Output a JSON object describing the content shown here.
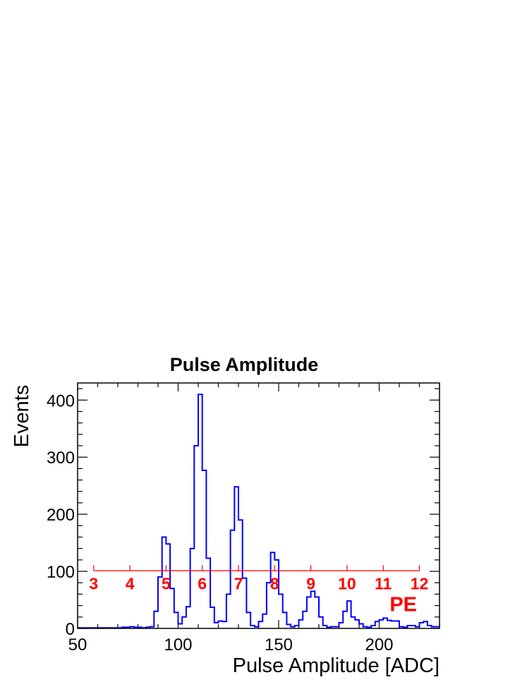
{
  "chart_data": {
    "type": "histogram",
    "title": "Pulse Amplitude",
    "xlabel": "Pulse Amplitude [ADC]",
    "ylabel": "Events",
    "xlim": [
      50,
      230
    ],
    "ylim": [
      0,
      430
    ],
    "x_ticks": [
      50,
      100,
      150,
      200
    ],
    "y_ticks": [
      0,
      100,
      200,
      300,
      400
    ],
    "grid": false,
    "bin_edges_start": 50,
    "bin_width": 2,
    "values": [
      1,
      1,
      1,
      1,
      1,
      1,
      1,
      1,
      1,
      1,
      1,
      2,
      2,
      3,
      2,
      2,
      1,
      2,
      3,
      30,
      90,
      160,
      148,
      70,
      28,
      8,
      20,
      38,
      140,
      320,
      410,
      277,
      123,
      37,
      10,
      13,
      12,
      60,
      172,
      248,
      190,
      88,
      28,
      5,
      3,
      12,
      25,
      80,
      133,
      120,
      60,
      28,
      7,
      3,
      5,
      15,
      30,
      55,
      65,
      55,
      20,
      5,
      2,
      3,
      3,
      10,
      30,
      48,
      20,
      15,
      8,
      3,
      2,
      5,
      12,
      15,
      18,
      14,
      13,
      13,
      3,
      2,
      5,
      5,
      3,
      10,
      12,
      5,
      3,
      3
    ],
    "color": "#0000ff",
    "annotation": {
      "line_y": 101,
      "line_x_range": [
        58,
        220
      ],
      "line_color": "#ff0000",
      "markers": [
        {
          "x": 58,
          "label": "3"
        },
        {
          "x": 76,
          "label": "4"
        },
        {
          "x": 94,
          "label": "5"
        },
        {
          "x": 112,
          "label": "6"
        },
        {
          "x": 130,
          "label": "7"
        },
        {
          "x": 148,
          "label": "8"
        },
        {
          "x": 166,
          "label": "9"
        },
        {
          "x": 184,
          "label": "10"
        },
        {
          "x": 202,
          "label": "11"
        },
        {
          "x": 220,
          "label": "12"
        }
      ],
      "unit_label": "PE",
      "unit_label_pos": {
        "x": 212,
        "y": 30
      }
    }
  }
}
